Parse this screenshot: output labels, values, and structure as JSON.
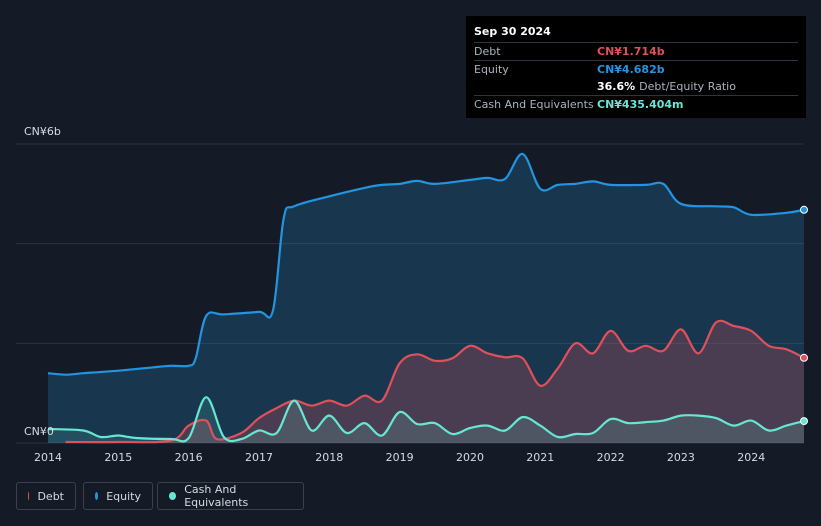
{
  "tooltip": {
    "date": "Sep 30 2024",
    "debt_label": "Debt",
    "debt_value": "CN¥1.714b",
    "equity_label": "Equity",
    "equity_value": "CN¥4.682b",
    "ratio_value": "36.6%",
    "ratio_label": "Debt/Equity Ratio",
    "cash_label": "Cash And Equivalents",
    "cash_value": "CN¥435.404m"
  },
  "legend": [
    {
      "label": "Debt",
      "color": "#e0505b"
    },
    {
      "label": "Equity",
      "color": "#2394df"
    },
    {
      "label": "Cash And Equivalents",
      "color": "#67e6d2"
    }
  ],
  "chart_data": {
    "type": "area",
    "y_unit_label_top": "CN¥6b",
    "y_unit_label_bottom": "CN¥0",
    "ylim": [
      0,
      6
    ],
    "xlim": [
      2014.0,
      2024.75
    ],
    "x_ticks": [
      "2014",
      "2015",
      "2016",
      "2017",
      "2018",
      "2019",
      "2020",
      "2021",
      "2022",
      "2023",
      "2024"
    ],
    "grid": true,
    "series": [
      {
        "name": "Equity",
        "color": "#2394df",
        "points": [
          [
            2014.0,
            1.4
          ],
          [
            2014.25,
            1.37
          ],
          [
            2014.5,
            1.4
          ],
          [
            2015.0,
            1.45
          ],
          [
            2015.5,
            1.52
          ],
          [
            2015.75,
            1.55
          ],
          [
            2016.0,
            1.55
          ],
          [
            2016.1,
            1.7
          ],
          [
            2016.25,
            2.55
          ],
          [
            2016.5,
            2.58
          ],
          [
            2017.0,
            2.63
          ],
          [
            2017.2,
            2.66
          ],
          [
            2017.35,
            4.5
          ],
          [
            2017.5,
            4.75
          ],
          [
            2018.0,
            4.95
          ],
          [
            2018.5,
            5.12
          ],
          [
            2018.75,
            5.18
          ],
          [
            2019.0,
            5.2
          ],
          [
            2019.25,
            5.26
          ],
          [
            2019.5,
            5.2
          ],
          [
            2020.0,
            5.28
          ],
          [
            2020.25,
            5.32
          ],
          [
            2020.5,
            5.3
          ],
          [
            2020.75,
            5.8
          ],
          [
            2021.0,
            5.1
          ],
          [
            2021.25,
            5.18
          ],
          [
            2021.5,
            5.2
          ],
          [
            2021.75,
            5.25
          ],
          [
            2022.0,
            5.18
          ],
          [
            2022.5,
            5.18
          ],
          [
            2022.75,
            5.2
          ],
          [
            2023.0,
            4.8
          ],
          [
            2023.5,
            4.75
          ],
          [
            2023.75,
            4.73
          ],
          [
            2024.0,
            4.58
          ],
          [
            2024.5,
            4.62
          ],
          [
            2024.75,
            4.68
          ]
        ]
      },
      {
        "name": "Debt",
        "color": "#e0505b",
        "points": [
          [
            2014.25,
            0.02
          ],
          [
            2015.0,
            0.02
          ],
          [
            2015.75,
            0.05
          ],
          [
            2016.0,
            0.35
          ],
          [
            2016.25,
            0.45
          ],
          [
            2016.4,
            0.08
          ],
          [
            2016.75,
            0.2
          ],
          [
            2017.0,
            0.5
          ],
          [
            2017.25,
            0.7
          ],
          [
            2017.5,
            0.85
          ],
          [
            2017.75,
            0.75
          ],
          [
            2018.0,
            0.85
          ],
          [
            2018.25,
            0.75
          ],
          [
            2018.5,
            0.95
          ],
          [
            2018.75,
            0.85
          ],
          [
            2019.0,
            1.6
          ],
          [
            2019.25,
            1.78
          ],
          [
            2019.5,
            1.65
          ],
          [
            2019.75,
            1.7
          ],
          [
            2020.0,
            1.95
          ],
          [
            2020.25,
            1.8
          ],
          [
            2020.5,
            1.72
          ],
          [
            2020.75,
            1.7
          ],
          [
            2021.0,
            1.15
          ],
          [
            2021.25,
            1.5
          ],
          [
            2021.5,
            2.0
          ],
          [
            2021.75,
            1.8
          ],
          [
            2022.0,
            2.25
          ],
          [
            2022.25,
            1.85
          ],
          [
            2022.5,
            1.95
          ],
          [
            2022.75,
            1.85
          ],
          [
            2023.0,
            2.28
          ],
          [
            2023.25,
            1.8
          ],
          [
            2023.5,
            2.42
          ],
          [
            2023.75,
            2.35
          ],
          [
            2024.0,
            2.25
          ],
          [
            2024.25,
            1.95
          ],
          [
            2024.5,
            1.88
          ],
          [
            2024.75,
            1.71
          ]
        ]
      },
      {
        "name": "Cash And Equivalents",
        "color": "#67e6d2",
        "points": [
          [
            2014.0,
            0.28
          ],
          [
            2014.5,
            0.25
          ],
          [
            2014.75,
            0.12
          ],
          [
            2015.0,
            0.15
          ],
          [
            2015.25,
            0.1
          ],
          [
            2015.75,
            0.08
          ],
          [
            2016.0,
            0.1
          ],
          [
            2016.25,
            0.92
          ],
          [
            2016.5,
            0.12
          ],
          [
            2016.75,
            0.08
          ],
          [
            2017.0,
            0.25
          ],
          [
            2017.25,
            0.2
          ],
          [
            2017.5,
            0.85
          ],
          [
            2017.75,
            0.25
          ],
          [
            2018.0,
            0.55
          ],
          [
            2018.25,
            0.2
          ],
          [
            2018.5,
            0.4
          ],
          [
            2018.75,
            0.15
          ],
          [
            2019.0,
            0.62
          ],
          [
            2019.25,
            0.38
          ],
          [
            2019.5,
            0.4
          ],
          [
            2019.75,
            0.18
          ],
          [
            2020.0,
            0.3
          ],
          [
            2020.25,
            0.35
          ],
          [
            2020.5,
            0.25
          ],
          [
            2020.75,
            0.52
          ],
          [
            2021.0,
            0.35
          ],
          [
            2021.25,
            0.12
          ],
          [
            2021.5,
            0.18
          ],
          [
            2021.75,
            0.2
          ],
          [
            2022.0,
            0.48
          ],
          [
            2022.25,
            0.4
          ],
          [
            2022.5,
            0.42
          ],
          [
            2022.75,
            0.45
          ],
          [
            2023.0,
            0.55
          ],
          [
            2023.25,
            0.55
          ],
          [
            2023.5,
            0.5
          ],
          [
            2023.75,
            0.35
          ],
          [
            2024.0,
            0.45
          ],
          [
            2024.25,
            0.25
          ],
          [
            2024.5,
            0.35
          ],
          [
            2024.75,
            0.44
          ]
        ]
      }
    ]
  }
}
